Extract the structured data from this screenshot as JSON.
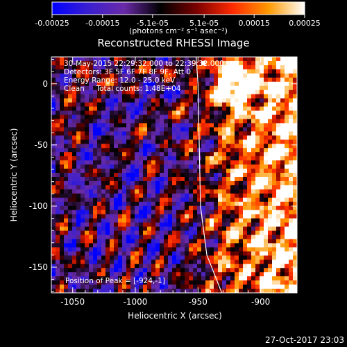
{
  "chart_data": {
    "type": "heatmap",
    "title": "Reconstructed RHESSI Image",
    "xlabel": "Heliocentric X (arcsec)",
    "ylabel": "Heliocentric Y (arcsec)",
    "xlim": [
      -1067,
      -871
    ],
    "ylim": [
      -171,
      22
    ],
    "xticks": [
      -1050,
      -1000,
      -950,
      -900
    ],
    "xtick_labels": [
      "-1050",
      "-1000",
      "-950",
      "-900"
    ],
    "yticks": [
      0,
      -50,
      -100,
      -150
    ],
    "ytick_labels": [
      "0",
      "-50",
      "-100",
      "-150"
    ],
    "colorbar": {
      "range": [
        -0.00025,
        0.00025
      ],
      "ticks": [
        -0.00025,
        -0.00015,
        -5.1e-05,
        5.1e-05,
        0.00015,
        0.00025
      ],
      "tick_labels": [
        "-0.00025",
        "-0.00015",
        "-5.1e-05",
        "5.1e-05",
        "0.00015",
        "0.00025"
      ],
      "unit_label": "(photons cm⁻² s⁻¹ asec⁻²)",
      "colors": [
        "#0000ff",
        "#3a1fd0",
        "#6a2aa8",
        "#000000",
        "#7a0000",
        "#ff2a00",
        "#ff9a00",
        "#ffffff"
      ]
    },
    "annotations": [
      "30-May-2015 22:29:32.000 to 22:39:32.000",
      "Detectors: 3F 5F 6F 7F 8F 9F, Att 0",
      "Energy Range: 12.0 - 25.0 keV",
      "Clean     Total counts: 1.48E+04",
      "Position of Peak = [-924,-1]"
    ],
    "peak_position": [
      -924,
      -1
    ],
    "limb_curve": [
      [
        -951.5,
        22
      ],
      [
        -950,
        0
      ],
      [
        -949,
        -50
      ],
      [
        -948,
        -100
      ],
      [
        -943,
        -140
      ],
      [
        -931,
        -171
      ]
    ],
    "grid": false,
    "timestamp": "27-Oct-2017 23:03"
  }
}
